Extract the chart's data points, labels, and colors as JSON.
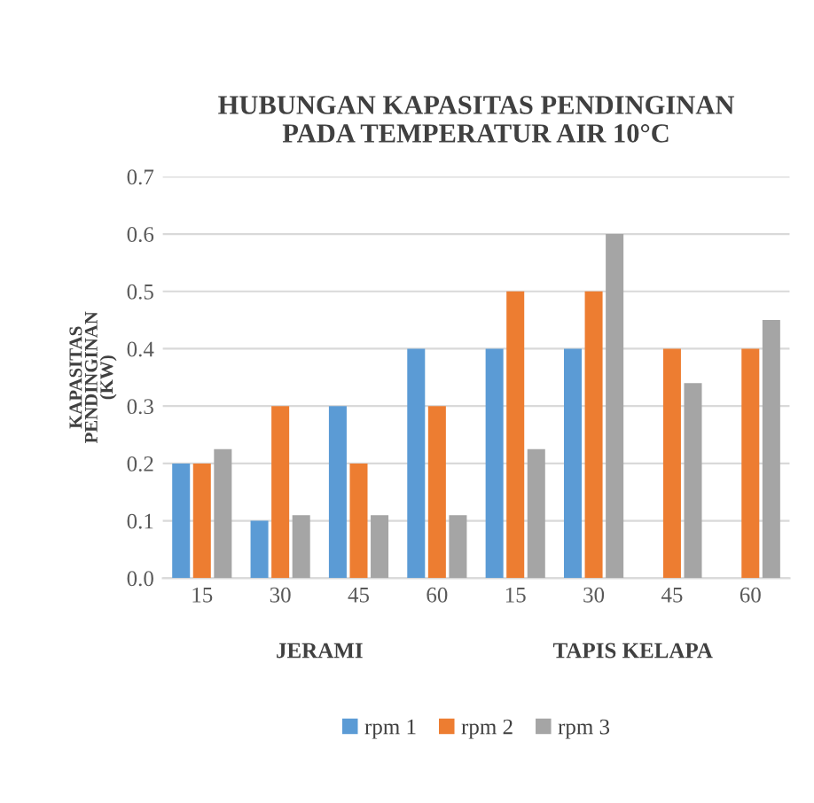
{
  "chart_data": {
    "type": "bar",
    "title": "HUBUNGAN KAPASITAS PENDINGINAN\nPADA TEMPERATUR AIR 10°C",
    "ylabel": "KAPASITAS\nPENDINGINAN\n(KW)",
    "categories": [
      "15",
      "30",
      "45",
      "60",
      "15",
      "30",
      "45",
      "60"
    ],
    "series": [
      {
        "name": "rpm 1",
        "color": "#5b9bd5",
        "values": [
          0.2,
          0.1,
          0.3,
          0.4,
          0.4,
          0.4,
          null,
          null
        ]
      },
      {
        "name": "rpm 2",
        "color": "#ed7d31",
        "values": [
          0.2,
          0.3,
          0.2,
          0.3,
          0.5,
          0.5,
          0.4,
          0.4
        ]
      },
      {
        "name": "rpm 3",
        "color": "#a5a5a5",
        "values": [
          0.225,
          0.11,
          0.11,
          0.11,
          0.225,
          0.6,
          0.34,
          0.45
        ]
      }
    ],
    "annotations": [
      "JERAMI",
      "TAPIS KELAPA"
    ],
    "ylim": [
      0,
      0.7
    ],
    "yticks": [
      {
        "value": 0,
        "label": "0.0"
      },
      0.1,
      0.2,
      0.3,
      0.4,
      0.5,
      0.6,
      0.7
    ],
    "grid": "y",
    "legend": "bottom"
  }
}
